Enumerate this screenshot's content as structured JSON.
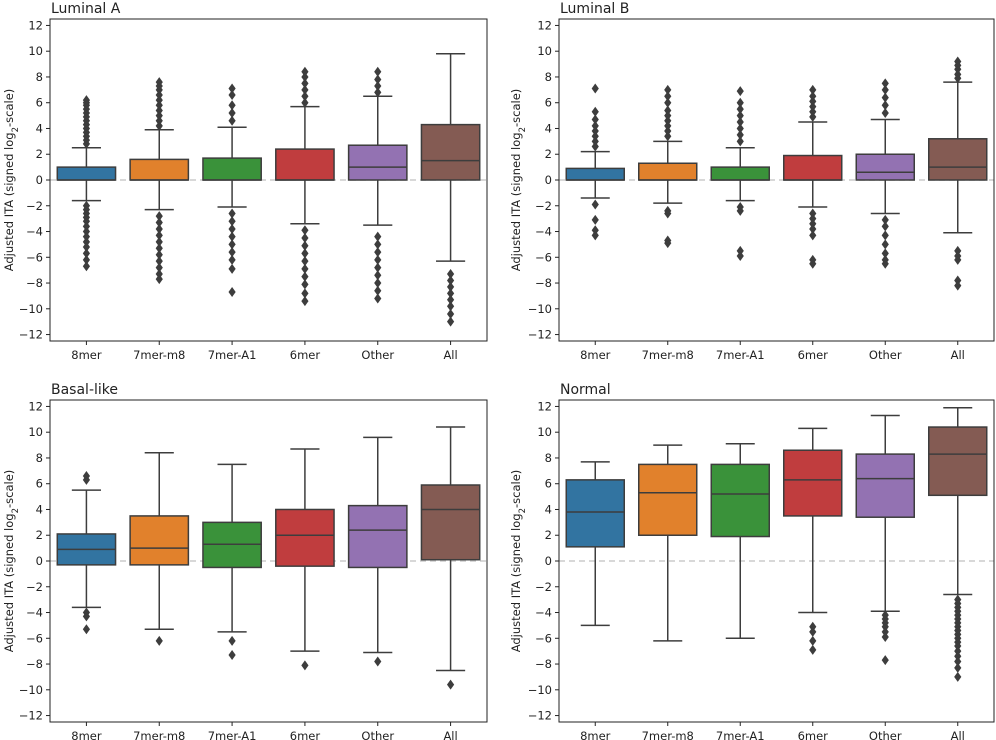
{
  "colors": {
    "8mer": "#3274a1",
    "7mer-m8": "#e1812c",
    "7mer-A1": "#3a923a",
    "6mer": "#c03d3e",
    "Other": "#9372b2",
    "All": "#845b53",
    "line": "#3d3d3d",
    "zero_line": "#cccccc"
  },
  "chart_data": [
    {
      "type": "box",
      "title": "Luminal A",
      "xlabel": "",
      "ylabel": "Adjusted ITA (signed log",
      "ylabel_sub": "2",
      "ylabel_suffix": "-scale)",
      "ylim": [
        -12.5,
        12.5
      ],
      "yticks": [
        12,
        10,
        8,
        6,
        4,
        2,
        0,
        -2,
        -4,
        -6,
        -8,
        -10,
        -12
      ],
      "categories": [
        "8mer",
        "7mer-m8",
        "7mer-A1",
        "6mer",
        "Other",
        "All"
      ],
      "boxes": [
        {
          "category": "8mer",
          "whislo": -1.6,
          "q1": 0.0,
          "med": 0.0,
          "q3": 1.0,
          "whishi": 2.5,
          "fliers": [
            2.8,
            3.1,
            3.4,
            3.7,
            4.0,
            4.3,
            4.6,
            4.9,
            5.2,
            5.5,
            5.8,
            6.0,
            6.2,
            -2.0,
            -2.3,
            -2.6,
            -2.9,
            -3.2,
            -3.6,
            -4.0,
            -4.4,
            -4.8,
            -5.2,
            -5.7,
            -6.2,
            -6.7
          ]
        },
        {
          "category": "7mer-m8",
          "whislo": -2.3,
          "q1": 0.0,
          "med": 0.0,
          "q3": 1.6,
          "whishi": 3.9,
          "fliers": [
            4.2,
            4.6,
            5.0,
            5.4,
            5.8,
            6.2,
            6.6,
            7.0,
            7.3,
            7.6,
            -2.8,
            -3.3,
            -3.8,
            -4.3,
            -4.8,
            -5.3,
            -5.8,
            -6.3,
            -6.8,
            -7.3,
            -7.7
          ]
        },
        {
          "category": "7mer-A1",
          "whislo": -2.1,
          "q1": 0.0,
          "med": 0.0,
          "q3": 1.7,
          "whishi": 4.1,
          "fliers": [
            4.6,
            5.2,
            5.8,
            6.6,
            7.1,
            -2.6,
            -3.2,
            -3.8,
            -4.4,
            -5.0,
            -5.6,
            -6.2,
            -6.9,
            -8.7
          ]
        },
        {
          "category": "6mer",
          "whislo": -3.4,
          "q1": 0.0,
          "med": 0.0,
          "q3": 2.4,
          "whishi": 5.7,
          "fliers": [
            6.0,
            6.5,
            7.0,
            7.5,
            8.0,
            8.4,
            -3.9,
            -4.5,
            -5.1,
            -5.7,
            -6.3,
            -6.9,
            -7.5,
            -8.1,
            -8.8,
            -9.4
          ]
        },
        {
          "category": "Other",
          "whislo": -3.5,
          "q1": 0.0,
          "med": 1.0,
          "q3": 2.7,
          "whishi": 6.5,
          "fliers": [
            6.8,
            7.3,
            7.8,
            8.4,
            -4.4,
            -5.0,
            -5.6,
            -6.2,
            -6.8,
            -7.4,
            -8.0,
            -8.6,
            -9.2
          ]
        },
        {
          "category": "All",
          "whislo": -6.3,
          "q1": 0.0,
          "med": 1.5,
          "q3": 4.3,
          "whishi": 9.8,
          "fliers": [
            -7.3,
            -7.8,
            -8.3,
            -8.8,
            -9.3,
            -9.8,
            -10.4,
            -11.0
          ]
        }
      ]
    },
    {
      "type": "box",
      "title": "Luminal B",
      "xlabel": "",
      "ylabel": "Adjusted ITA (signed log",
      "ylabel_sub": "2",
      "ylabel_suffix": "-scale)",
      "ylim": [
        -12.5,
        12.5
      ],
      "yticks": [
        12,
        10,
        8,
        6,
        4,
        2,
        0,
        -2,
        -4,
        -6,
        -8,
        -10,
        -12
      ],
      "categories": [
        "8mer",
        "7mer-m8",
        "7mer-A1",
        "6mer",
        "Other",
        "All"
      ],
      "boxes": [
        {
          "category": "8mer",
          "whislo": -1.4,
          "q1": 0.0,
          "med": 0.0,
          "q3": 0.9,
          "whishi": 2.2,
          "fliers": [
            2.6,
            3.0,
            3.4,
            3.8,
            4.2,
            4.7,
            5.3,
            7.1,
            -1.9,
            -3.1,
            -3.9,
            -4.3
          ]
        },
        {
          "category": "7mer-m8",
          "whislo": -1.8,
          "q1": 0.0,
          "med": 0.0,
          "q3": 1.3,
          "whishi": 3.0,
          "fliers": [
            3.4,
            3.8,
            4.2,
            4.6,
            5.0,
            5.4,
            6.0,
            6.5,
            7.0,
            -2.4,
            -2.6,
            -4.7,
            -4.9
          ]
        },
        {
          "category": "7mer-A1",
          "whislo": -1.6,
          "q1": 0.0,
          "med": 0.0,
          "q3": 1.0,
          "whishi": 2.5,
          "fliers": [
            3.0,
            3.5,
            4.0,
            4.5,
            5.0,
            5.5,
            6.0,
            6.9,
            -2.1,
            -2.4,
            -5.5,
            -5.9
          ]
        },
        {
          "category": "6mer",
          "whislo": -2.1,
          "q1": 0.0,
          "med": 0.0,
          "q3": 1.9,
          "whishi": 4.5,
          "fliers": [
            4.9,
            5.3,
            5.7,
            6.1,
            6.5,
            7.0,
            -2.6,
            -3.0,
            -3.4,
            -3.8,
            -4.3,
            -6.2,
            -6.5
          ]
        },
        {
          "category": "Other",
          "whislo": -2.6,
          "q1": 0.0,
          "med": 0.6,
          "q3": 2.0,
          "whishi": 4.7,
          "fliers": [
            5.2,
            5.8,
            6.4,
            7.0,
            7.5,
            -3.1,
            -3.6,
            -4.3,
            -5.0,
            -5.7,
            -6.2,
            -6.5
          ]
        },
        {
          "category": "All",
          "whislo": -4.1,
          "q1": 0.0,
          "med": 1.0,
          "q3": 3.2,
          "whishi": 7.6,
          "fliers": [
            7.9,
            8.2,
            8.6,
            8.9,
            9.2,
            -5.5,
            -5.9,
            -6.2,
            -7.8,
            -8.2
          ]
        }
      ]
    },
    {
      "type": "box",
      "title": "Basal-like",
      "xlabel": "",
      "ylabel": "Adjusted ITA (signed log",
      "ylabel_sub": "2",
      "ylabel_suffix": "-scale)",
      "ylim": [
        -12.5,
        12.5
      ],
      "yticks": [
        12,
        10,
        8,
        6,
        4,
        2,
        0,
        -2,
        -4,
        -6,
        -8,
        -10,
        -12
      ],
      "categories": [
        "8mer",
        "7mer-m8",
        "7mer-A1",
        "6mer",
        "Other",
        "All"
      ],
      "boxes": [
        {
          "category": "8mer",
          "whislo": -3.6,
          "q1": -0.3,
          "med": 0.9,
          "q3": 2.1,
          "whishi": 5.5,
          "fliers": [
            6.3,
            6.6,
            -4.0,
            -4.3,
            -5.3
          ]
        },
        {
          "category": "7mer-m8",
          "whislo": -5.3,
          "q1": -0.3,
          "med": 1.0,
          "q3": 3.5,
          "whishi": 8.4,
          "fliers": [
            -6.2
          ]
        },
        {
          "category": "7mer-A1",
          "whislo": -5.5,
          "q1": -0.5,
          "med": 1.3,
          "q3": 3.0,
          "whishi": 7.5,
          "fliers": [
            -6.2,
            -7.3
          ]
        },
        {
          "category": "6mer",
          "whislo": -7.0,
          "q1": -0.4,
          "med": 2.0,
          "q3": 4.0,
          "whishi": 8.7,
          "fliers": [
            -8.1
          ]
        },
        {
          "category": "Other",
          "whislo": -7.1,
          "q1": -0.5,
          "med": 2.4,
          "q3": 4.3,
          "whishi": 9.6,
          "fliers": [
            -7.8
          ]
        },
        {
          "category": "All",
          "whislo": -8.5,
          "q1": 0.1,
          "med": 4.0,
          "q3": 5.9,
          "whishi": 10.4,
          "fliers": [
            -9.6
          ]
        }
      ]
    },
    {
      "type": "box",
      "title": "Normal",
      "xlabel": "",
      "ylabel": "Adjusted ITA (signed log",
      "ylabel_sub": "2",
      "ylabel_suffix": "-scale)",
      "ylim": [
        -12.5,
        12.5
      ],
      "yticks": [
        12,
        10,
        8,
        6,
        4,
        2,
        0,
        -2,
        -4,
        -6,
        -8,
        -10,
        -12
      ],
      "categories": [
        "8mer",
        "7mer-m8",
        "7mer-A1",
        "6mer",
        "Other",
        "All"
      ],
      "boxes": [
        {
          "category": "8mer",
          "whislo": -5.0,
          "q1": 1.1,
          "med": 3.8,
          "q3": 6.3,
          "whishi": 7.7,
          "fliers": []
        },
        {
          "category": "7mer-m8",
          "whislo": -6.2,
          "q1": 2.0,
          "med": 5.3,
          "q3": 7.5,
          "whishi": 9.0,
          "fliers": []
        },
        {
          "category": "7mer-A1",
          "whislo": -6.0,
          "q1": 1.9,
          "med": 5.2,
          "q3": 7.5,
          "whishi": 9.1,
          "fliers": []
        },
        {
          "category": "6mer",
          "whislo": -4.0,
          "q1": 3.5,
          "med": 6.3,
          "q3": 8.6,
          "whishi": 10.3,
          "fliers": [
            -5.1,
            -5.5,
            -6.2,
            -6.9
          ]
        },
        {
          "category": "Other",
          "whislo": -3.9,
          "q1": 3.4,
          "med": 6.4,
          "q3": 8.3,
          "whishi": 11.3,
          "fliers": [
            -4.2,
            -4.5,
            -4.8,
            -5.1,
            -5.5,
            -5.9,
            -7.7
          ]
        },
        {
          "category": "All",
          "whislo": -2.6,
          "q1": 5.1,
          "med": 8.3,
          "q3": 10.4,
          "whishi": 11.9,
          "fliers": [
            -3.0,
            -3.3,
            -3.6,
            -3.9,
            -4.2,
            -4.5,
            -4.8,
            -5.1,
            -5.4,
            -5.7,
            -6.0,
            -6.3,
            -6.6,
            -7.0,
            -7.4,
            -7.8,
            -8.3,
            -9.0
          ]
        }
      ]
    }
  ]
}
